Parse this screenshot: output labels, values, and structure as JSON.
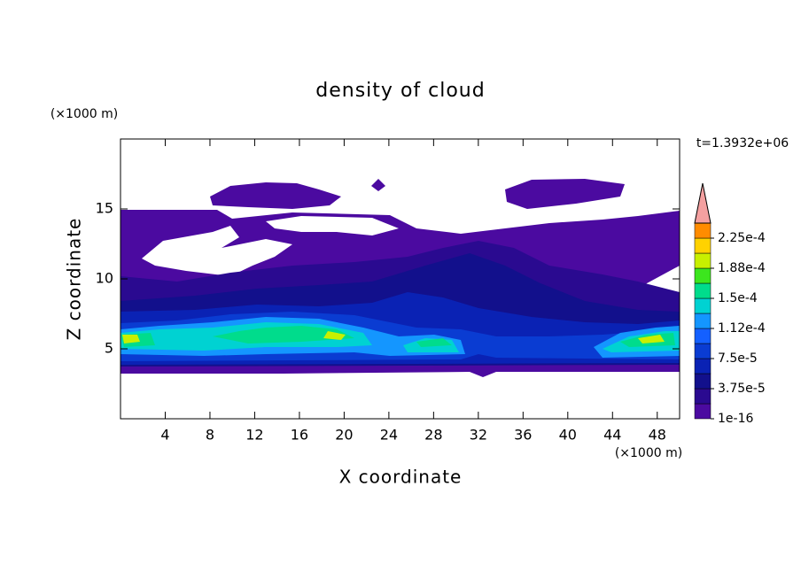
{
  "chart_data": {
    "type": "contour",
    "title": "density of cloud",
    "x_label": "X coordinate",
    "y_label": "Z coordinate",
    "x_unit": "(×1000 m)",
    "y_unit": "(×1000 m)",
    "time_label": "t=1.3932e+06",
    "xlim": [
      0,
      50
    ],
    "xticks": [
      4,
      8,
      12,
      16,
      20,
      24,
      28,
      32,
      36,
      40,
      44,
      48
    ],
    "ylim": [
      0,
      20
    ],
    "yticks": [
      5,
      10,
      15
    ],
    "colorbar": {
      "levels": [
        1e-16,
        1.875e-05,
        3.75e-05,
        5.625e-05,
        7.5e-05,
        9.375e-05,
        0.0001125,
        0.00013125,
        0.00015,
        0.00016875,
        0.0001875,
        0.00020625,
        0.000225,
        0.00024375
      ],
      "colors": [
        "#4b0aa0",
        "#2a0a90",
        "#12108c",
        "#0a22b4",
        "#0a3cd2",
        "#1460ff",
        "#1496ff",
        "#00d2d2",
        "#00dc8c",
        "#3ce61e",
        "#c8f000",
        "#ffd200",
        "#ff8c00",
        "#ff3c00"
      ],
      "extend_color": "#f4a0a0",
      "ticks": [
        {
          "value": 1e-16,
          "label": "1e-16"
        },
        {
          "value": 3.75e-05,
          "label": "3.75e-5"
        },
        {
          "value": 7.5e-05,
          "label": "7.5e-5"
        },
        {
          "value": 0.0001125,
          "label": "1.12e-4"
        },
        {
          "value": 0.00015,
          "label": "1.5e-4"
        },
        {
          "value": 0.0001875,
          "label": "1.88e-4"
        },
        {
          "value": 0.000225,
          "label": "2.25e-4"
        }
      ]
    }
  }
}
